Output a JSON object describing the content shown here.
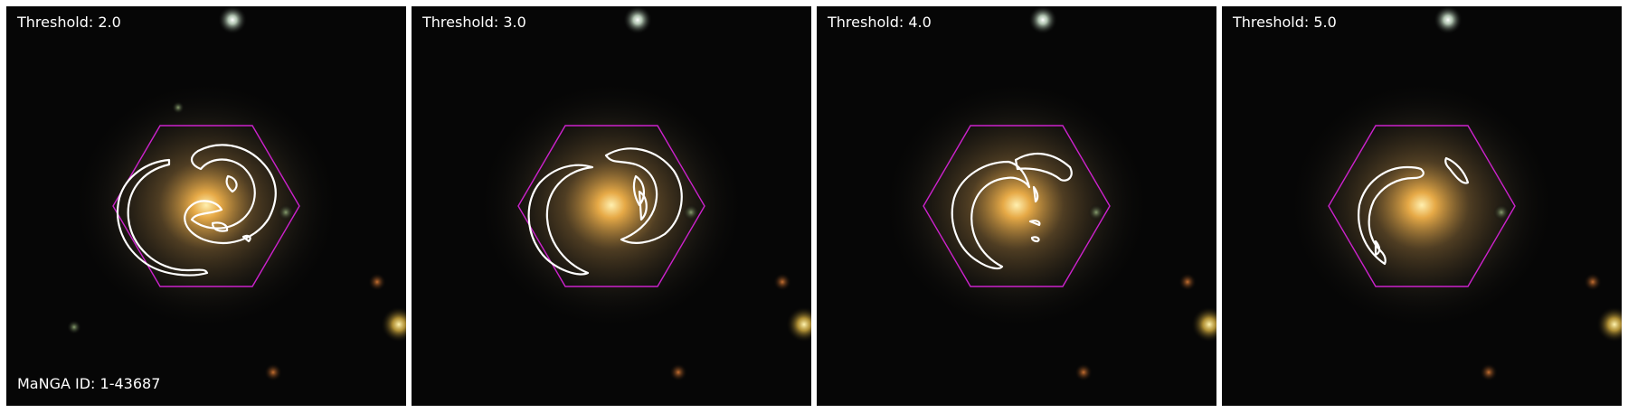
{
  "panels": [
    {
      "threshold_label": "Threshold: 2.0"
    },
    {
      "threshold_label": "Threshold: 3.0"
    },
    {
      "threshold_label": "Threshold: 4.0"
    },
    {
      "threshold_label": "Threshold: 5.0"
    }
  ],
  "manga_id_label": "MaNGA ID: 1-43687",
  "colors": {
    "hexagon": "#cc22cc",
    "contour": "#ffffff",
    "background": "#050505",
    "galaxy_core": "#ffd27a"
  }
}
